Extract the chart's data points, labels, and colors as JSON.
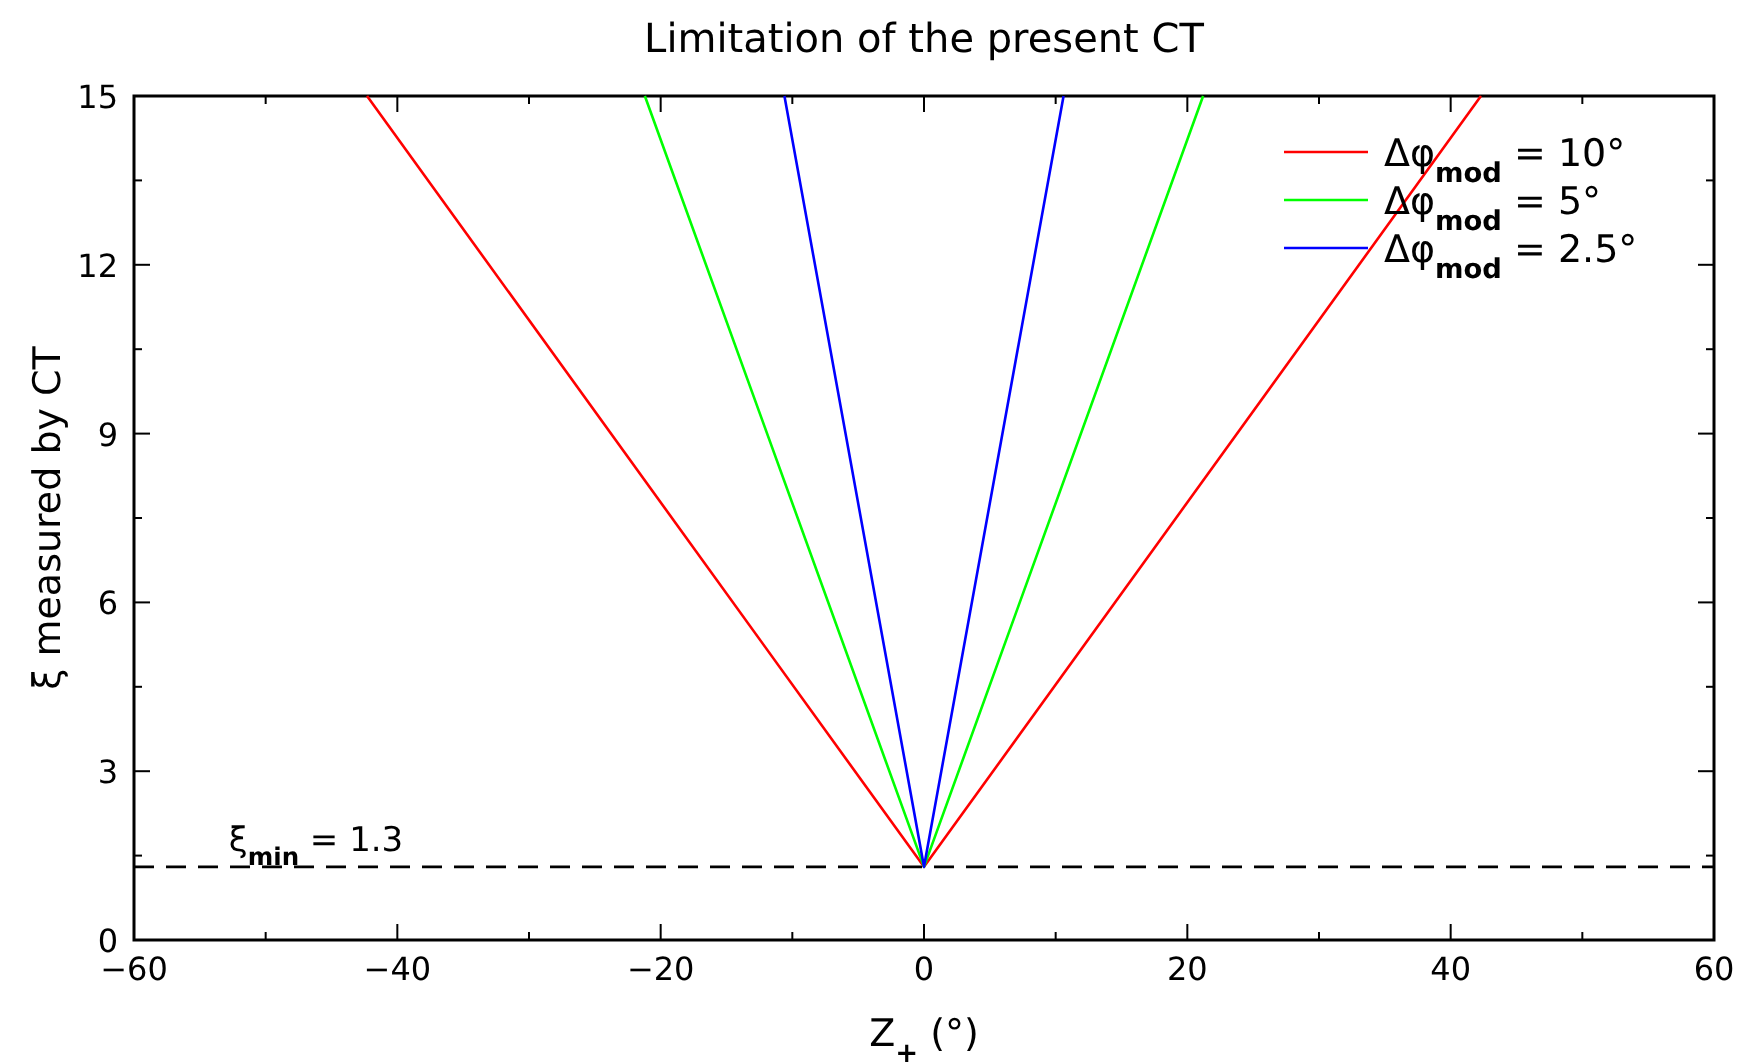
{
  "chart_data": {
    "type": "line",
    "title": "Limitation of the present CT",
    "xlabel": "Z$_{+}$ (°)",
    "ylabel": "ξ measured by CT",
    "xlim": [
      -60,
      60
    ],
    "ylim": [
      0,
      15
    ],
    "xticks": [
      -60,
      {
        "value": -50,
        "label": null
      },
      -40,
      {
        "value": -30,
        "label": null
      },
      -20,
      {
        "value": -10,
        "label": null
      },
      0,
      {
        "value": 10,
        "label": null
      },
      20,
      {
        "value": 30,
        "label": null
      },
      40,
      {
        "value": 50,
        "label": null
      },
      60
    ],
    "yticks": [
      0,
      {
        "value": 1.5,
        "label": null
      },
      3,
      {
        "value": 4.5,
        "label": null
      },
      6,
      {
        "value": 7.5,
        "label": null
      },
      9,
      {
        "value": 10.5,
        "label": null
      },
      12,
      {
        "value": 13.5,
        "label": null
      },
      15
    ],
    "series": [
      {
        "name": "Δφ$_{mod}$ = 10°",
        "color": "#ff0000",
        "x": [
          -42.3,
          0,
          42.3
        ],
        "values": [
          15,
          1.3,
          15
        ]
      },
      {
        "name": "Δφ$_{mod}$ = 5°",
        "color": "#00ff00",
        "x": [
          -21.2,
          0,
          21.2
        ],
        "values": [
          15,
          1.3,
          15
        ]
      },
      {
        "name": "Δφ$_{mod}$ = 2.5°",
        "color": "#0000ff",
        "x": [
          -10.6,
          0,
          10.6
        ],
        "values": [
          15,
          1.3,
          15
        ]
      }
    ],
    "ref_lines": [
      {
        "axis": "y",
        "value": 1.3,
        "label": "ξ$_{min}$ = 1.3",
        "color": "#000000",
        "line_style": "dashed"
      }
    ],
    "legend": "top right",
    "grid": false,
    "line_style": "solid",
    "marker": "none"
  }
}
